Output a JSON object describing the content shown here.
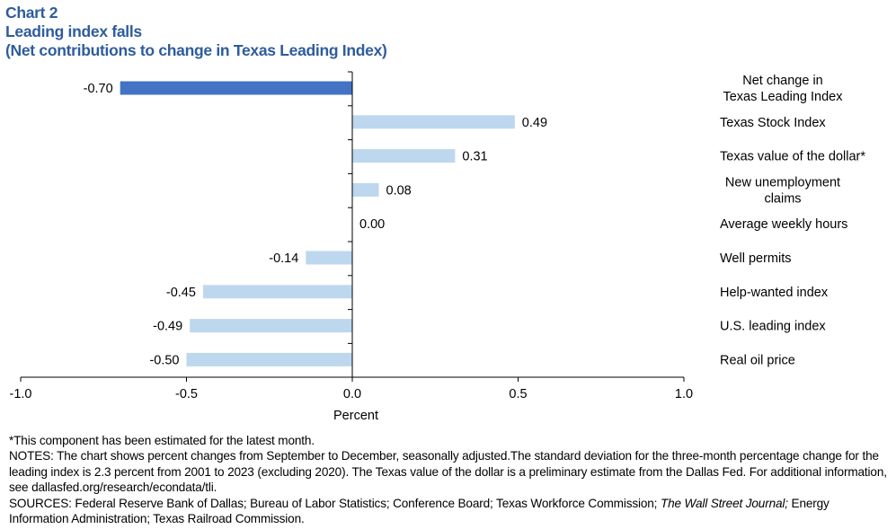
{
  "header": {
    "chart_number": "Chart 2",
    "title": "Leading index falls",
    "subtitle": "(Net contributions to change in Texas Leading Index)"
  },
  "chart_data": {
    "type": "bar",
    "orientation": "horizontal",
    "categories": [
      "Net change in Texas Leading Index",
      "Texas Stock Index",
      "Texas value of the dollar*",
      "New unemployment claims",
      "Average weekly hours",
      "Well permits",
      "Help-wanted index",
      "U.S. leading index",
      "Real oil price"
    ],
    "category_lines": [
      [
        "Net change in",
        "Texas Leading Index"
      ],
      [
        "Texas Stock Index"
      ],
      [
        "Texas value of the dollar*"
      ],
      [
        "New unemployment",
        "claims"
      ],
      [
        "Average weekly hours"
      ],
      [
        "Well permits"
      ],
      [
        "Help-wanted index"
      ],
      [
        "U.S. leading index"
      ],
      [
        "Real oil price"
      ]
    ],
    "values": [
      -0.7,
      0.49,
      0.31,
      0.08,
      0.0,
      -0.14,
      -0.45,
      -0.49,
      -0.5
    ],
    "value_labels": [
      "-0.70",
      "0.49",
      "0.31",
      "0.08",
      "0.00",
      "-0.14",
      "-0.45",
      "-0.49",
      "-0.50"
    ],
    "xlabel": "Percent",
    "xlim": [
      -1.0,
      1.0
    ],
    "xticks": [
      -1.0,
      -0.5,
      0.0,
      0.5,
      1.0
    ],
    "xtick_labels": [
      "-1.0",
      "-0.5",
      "0.0",
      "0.5",
      "1.0"
    ],
    "grid": false,
    "colors": {
      "highlight": "#4472c4",
      "bars": "#bdd7ee",
      "title": "#2e5c9e"
    }
  },
  "notes": {
    "footnote": "*This component has been estimated for the latest month.",
    "notes_text": "NOTES: The chart shows percent changes from September to December, seasonally adjusted.The standard deviation for the three-month percentage change for the leading index is 2.3 percent from 2001 to 2023 (excluding 2020). The Texas value of the dollar is a preliminary estimate from the Dallas Fed. For additional information, see dallasfed.org/research/econdata/tli.",
    "sources_prefix": "SOURCES: Federal Reserve Bank of Dallas; Bureau of Labor Statistics; Conference Board; Texas Workforce Commission; ",
    "sources_italic": "The Wall Street Journal;",
    "sources_suffix": " Energy Information Administration; Texas Railroad Commission."
  }
}
